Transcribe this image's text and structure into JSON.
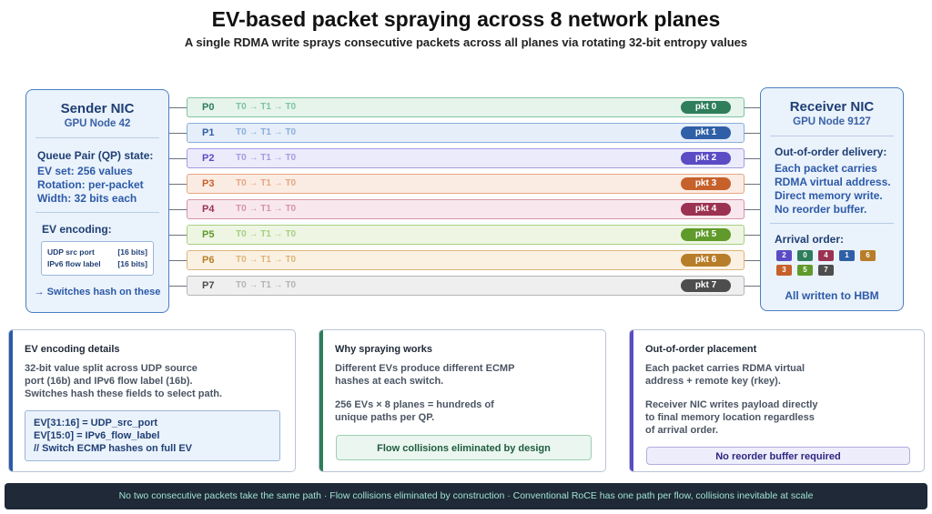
{
  "title": "EV-based packet spraying across 8 network planes",
  "subtitle": "A single RDMA write sprays consecutive packets across all planes via rotating 32-bit entropy values",
  "sender": {
    "title": "Sender NIC",
    "node": "GPU Node 42",
    "qp_heading": "Queue Pair (QP) state:",
    "qp_lines": [
      "EV set: 256 values",
      "Rotation: per-packet",
      "Width: 32 bits each"
    ],
    "encoding_heading": "EV encoding:",
    "encoding_rows": [
      {
        "field": "UDP src port",
        "bits": "[16 bits]"
      },
      {
        "field": "IPv6 flow label",
        "bits": "[16 bits]"
      }
    ],
    "footer": "→ Switches hash on these"
  },
  "receiver": {
    "title": "Receiver NIC",
    "node": "GPU Node 9127",
    "ooo_heading": "Out-of-order delivery:",
    "ooo_lines": [
      "Each packet carries",
      "RDMA virtual address.",
      "Direct memory write.",
      "No reorder buffer."
    ],
    "arrival_heading": "Arrival order:",
    "arrival_order": [
      "2",
      "0",
      "4",
      "1",
      "6",
      "3",
      "5",
      "7"
    ],
    "footer": "All written to HBM"
  },
  "planes": [
    {
      "label": "P0",
      "seq": "T0 → T1 → T0",
      "pkt": "pkt 0",
      "color": "#2e7d5b",
      "bg": "#e6f4ec",
      "border": "#7fc4a0"
    },
    {
      "label": "P1",
      "seq": "T0 → T1 → T0",
      "pkt": "pkt 1",
      "color": "#2f5fa7",
      "bg": "#e6eef9",
      "border": "#8aaedb"
    },
    {
      "label": "P2",
      "seq": "T0 → T1 → T0",
      "pkt": "pkt 2",
      "color": "#5b4bc4",
      "bg": "#ecebfb",
      "border": "#a49ce0"
    },
    {
      "label": "P3",
      "seq": "T0 → T1 → T0",
      "pkt": "pkt 3",
      "color": "#c7612b",
      "bg": "#fbece3",
      "border": "#e3a683"
    },
    {
      "label": "P4",
      "seq": "T0 → T1 → T0",
      "pkt": "pkt 4",
      "color": "#9c3251",
      "bg": "#f8e8ee",
      "border": "#d693a8"
    },
    {
      "label": "P5",
      "seq": "T0 → T1 → T0",
      "pkt": "pkt 5",
      "color": "#5f9a2a",
      "bg": "#eef6e3",
      "border": "#a8cf81"
    },
    {
      "label": "P6",
      "seq": "T0 → T1 → T0",
      "pkt": "pkt 6",
      "color": "#b87d28",
      "bg": "#fbf1e2",
      "border": "#dcb57b"
    },
    {
      "label": "P7",
      "seq": "T0 → T1 → T0",
      "pkt": "pkt 7",
      "color": "#4d4d4d",
      "bg": "#efefef",
      "border": "#b5b5b5"
    }
  ],
  "cards": {
    "encoding": {
      "title": "EV encoding details",
      "text": [
        "32-bit value split across UDP source",
        "port (16b) and IPv6 flow label (16b).",
        "Switches hash these fields to select path."
      ],
      "code": [
        "EV[31:16] = UDP_src_port",
        "EV[15:0] = IPv6_flow_label",
        "// Switch ECMP hashes on full EV"
      ],
      "accent": "#2c5aa8"
    },
    "spraying": {
      "title": "Why spraying works",
      "text1": [
        "Different EVs produce different ECMP",
        "hashes at each switch."
      ],
      "text2": [
        "256 EVs × 8 planes = hundreds of",
        "unique paths per QP."
      ],
      "callout": "Flow collisions eliminated by design",
      "accent": "#2e7d5b"
    },
    "placement": {
      "title": "Out-of-order placement",
      "text1": [
        "Each packet carries RDMA virtual",
        "address + remote key (rkey)."
      ],
      "text2": [
        "Receiver NIC writes payload directly",
        "to final memory location regardless",
        "of arrival order."
      ],
      "callout": "No reorder buffer required",
      "accent": "#5b4bc4"
    }
  },
  "footer": "No two consecutive packets take the same path · Flow collisions eliminated by construction · Conventional RoCE has one path per flow, collisions inevitable at scale"
}
